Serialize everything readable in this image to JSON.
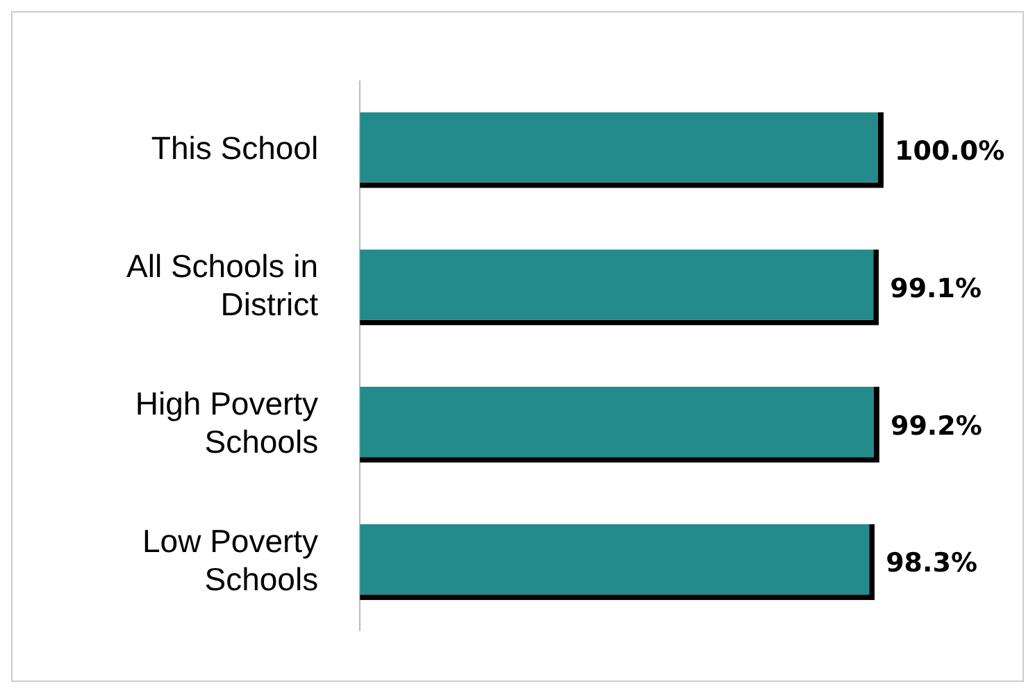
{
  "chart_data": {
    "type": "bar",
    "orientation": "horizontal",
    "categories": [
      "This School",
      "All Schools in District",
      "High Poverty Schools",
      "Low Poverty Schools"
    ],
    "values": [
      100.0,
      99.1,
      99.2,
      98.3
    ],
    "value_labels": [
      "100.0%",
      "99.1%",
      "99.2%",
      "98.3%"
    ],
    "color": "#238b8b",
    "tick_labels": "y",
    "legend": false
  }
}
